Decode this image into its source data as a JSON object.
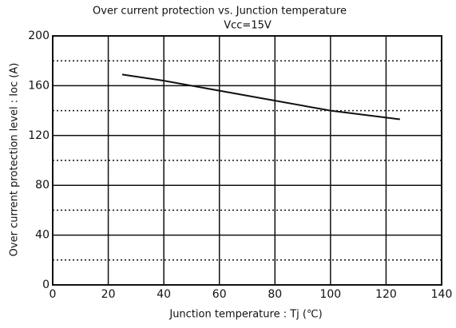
{
  "chart_data": {
    "type": "line",
    "title": "Over current protection vs. Junction temperature",
    "subtitle": "Vcc=15V",
    "x_label": "Junction temperature : Tj (℃)",
    "y_label": "Over current protection level : Ioc (A)",
    "x": [
      25,
      40,
      60,
      80,
      100,
      125
    ],
    "series": [
      {
        "name": null,
        "color": "#111111",
        "values": [
          169,
          164,
          156,
          148,
          140,
          133
        ]
      }
    ],
    "xlim": [
      0,
      140
    ],
    "xticks": [
      0,
      20,
      40,
      60,
      80,
      100,
      120,
      140
    ],
    "ylim": [
      0,
      200
    ],
    "yticks": [
      0,
      40,
      80,
      120,
      160,
      200
    ],
    "minor_yticks": [
      20,
      60,
      100,
      140,
      180
    ],
    "grid": true
  }
}
